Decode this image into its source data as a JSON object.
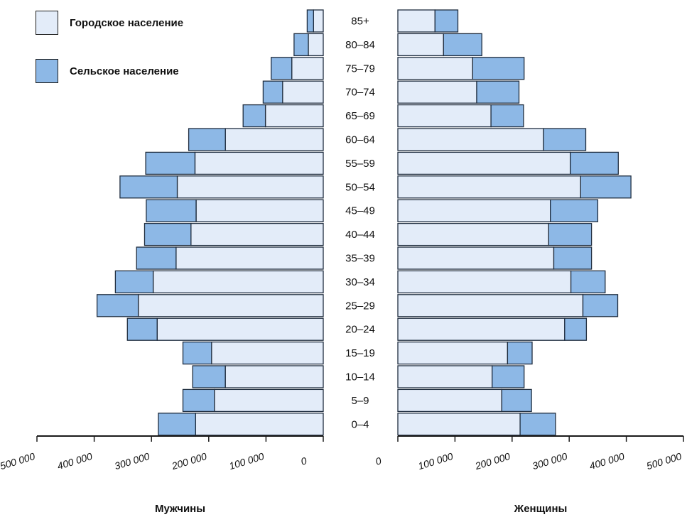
{
  "legend": {
    "urban": "Городское население",
    "rural": "Сельское население"
  },
  "colors": {
    "urban": "#e3ecf9",
    "rural": "#8db8e6",
    "stroke": "#1f2d3f",
    "axis": "#1a1a1a"
  },
  "chart_data": {
    "type": "bar",
    "subtype": "population-pyramid",
    "stacked": true,
    "orientation": "horizontal",
    "categories": [
      "0–4",
      "5–9",
      "10–14",
      "15–19",
      "20–24",
      "25–29",
      "30–34",
      "35–39",
      "40–44",
      "45–49",
      "50–54",
      "55–59",
      "60–64",
      "65–69",
      "70–74",
      "75–79",
      "80–84",
      "85+"
    ],
    "xlim": [
      0,
      500000
    ],
    "x_ticks": [
      0,
      100000,
      200000,
      300000,
      400000,
      500000
    ],
    "x_tick_labels": [
      "0",
      "100 000",
      "200 000",
      "300 000",
      "400 000",
      "500 000"
    ],
    "grid": false,
    "legend_position": "top-left",
    "panels": [
      {
        "key": "male",
        "xlabel": "Мужчины",
        "direction": "left",
        "series": [
          {
            "name": "Городское население",
            "values": [
              223000,
              190000,
              171000,
              195000,
              290000,
              323000,
              297000,
              257000,
              231000,
              222000,
              255000,
              224000,
              171000,
              101000,
              71000,
              55000,
              26000,
              17000
            ]
          },
          {
            "name": "Сельское население",
            "values": [
              65000,
              55000,
              57000,
              50000,
              52000,
              72000,
              66000,
              69000,
              81000,
              87000,
              100000,
              86000,
              64000,
              39000,
              34000,
              36000,
              25000,
              11000
            ]
          }
        ]
      },
      {
        "key": "female",
        "xlabel": "Женщины",
        "direction": "right",
        "series": [
          {
            "name": "Городское население",
            "values": [
              214000,
              182000,
              165000,
              192000,
              292000,
              324000,
              303000,
              273000,
              264000,
              267000,
              320000,
              302000,
              255000,
              163000,
              138000,
              131000,
              80000,
              65000
            ]
          },
          {
            "name": "Сельское население",
            "values": [
              62000,
              52000,
              56000,
              43000,
              38000,
              61000,
              60000,
              66000,
              75000,
              83000,
              88000,
              84000,
              74000,
              57000,
              74000,
              90000,
              67000,
              40000
            ]
          }
        ]
      }
    ]
  }
}
